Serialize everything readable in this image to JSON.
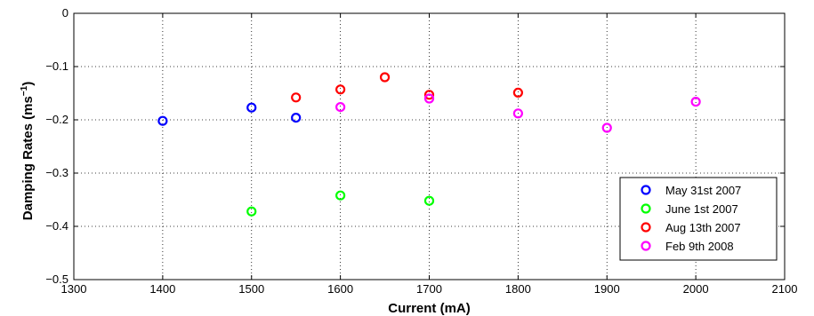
{
  "chart_data": {
    "type": "scatter",
    "title": "",
    "xlabel": "Current (mA)",
    "ylabel_main": "Damping Rates (ms",
    "ylabel_sup": "−1",
    "ylabel_close": ")",
    "xlim": [
      1300,
      2100
    ],
    "ylim": [
      -0.5,
      0
    ],
    "xticks": [
      1300,
      1400,
      1500,
      1600,
      1700,
      1800,
      1900,
      2000,
      2100
    ],
    "yticks": [
      0,
      -0.1,
      -0.2,
      -0.3,
      -0.4,
      -0.5
    ],
    "xtick_labels": [
      "1300",
      "1400",
      "1500",
      "1600",
      "1700",
      "1800",
      "1900",
      "2000",
      "2100"
    ],
    "ytick_labels": [
      "0",
      "−0.1",
      "−0.2",
      "−0.3",
      "−0.4",
      "−0.5"
    ],
    "grid": true,
    "legend_position": "bottom-right",
    "series": [
      {
        "name": "May 31st 2007",
        "color": "#0000ff",
        "marker": "circle-open",
        "points": [
          [
            1400,
            -0.202
          ],
          [
            1500,
            -0.177
          ],
          [
            1550,
            -0.196
          ]
        ]
      },
      {
        "name": "June 1st 2007",
        "color": "#00ff00",
        "marker": "circle-open",
        "points": [
          [
            1500,
            -0.372
          ],
          [
            1600,
            -0.342
          ],
          [
            1700,
            -0.352
          ]
        ]
      },
      {
        "name": "Aug 13th 2007",
        "color": "#ff0000",
        "marker": "circle-open",
        "points": [
          [
            1550,
            -0.158
          ],
          [
            1600,
            -0.143
          ],
          [
            1650,
            -0.12
          ],
          [
            1700,
            -0.153
          ],
          [
            1800,
            -0.149
          ]
        ]
      },
      {
        "name": "Feb 9th 2008",
        "color": "#ff00ff",
        "marker": "circle-open",
        "points": [
          [
            1600,
            -0.176
          ],
          [
            1700,
            -0.16
          ],
          [
            1800,
            -0.188
          ],
          [
            1900,
            -0.215
          ],
          [
            2000,
            -0.166
          ]
        ]
      }
    ]
  }
}
